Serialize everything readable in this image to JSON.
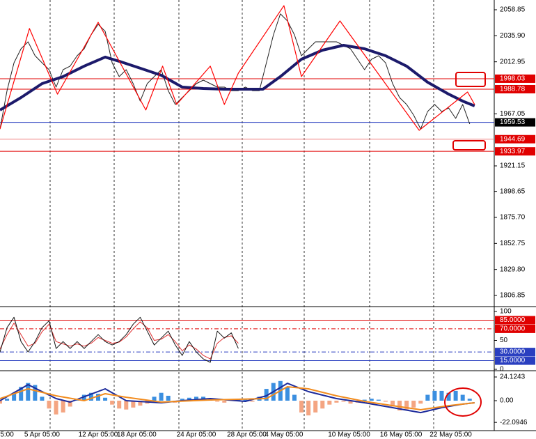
{
  "chart_data": [
    {
      "type": "line",
      "xlim": [
        0,
        70.5
      ],
      "ylim": [
        1798.25,
        2067.45
      ],
      "yticks": [
        2058.85,
        {
          "value": 2035.9,
          "label": "2035.90"
        },
        2012.95,
        1967.05,
        1921.15,
        1898.65,
        {
          "value": 1875.7,
          "label": "1875.70"
        },
        1852.75,
        {
          "value": 1829.8,
          "label": "1829.80"
        },
        1806.85
      ],
      "levels": [
        {
          "value": 1998.03,
          "color": "#e00000",
          "box": "#e00000"
        },
        {
          "value": 1988.78,
          "color": "#e00000",
          "box": "#e00000"
        },
        {
          "value": 1959.53,
          "color": "#2a3fc0",
          "box": "#000000"
        },
        {
          "value": 1944.69,
          "color": "#f08080",
          "box": "#e00000"
        },
        {
          "value": 1933.97,
          "color": "#e00000",
          "box": "#e00000"
        }
      ],
      "lines": [
        {
          "color": "#222222",
          "width": 1,
          "values": [
            1953.7,
            1987.5,
            2012.1,
            2024.4,
            2030.6,
            2018.3,
            2012.1,
            2006.0,
            1990.6,
            2006.0,
            2009.1,
            2018.3,
            2024.4,
            2036.7,
            2046.0,
            2039.8,
            2012.1,
            1999.9,
            2006.0,
            1993.7,
            1978.3,
            1993.7,
            1999.9,
            2006.0,
            1987.5,
            1975.3,
            1981.4,
            1987.5,
            1993.7,
            1996.8,
            1993.7,
            1990.6,
            1990.6,
            1987.5,
            1987.5,
            1990.6,
            1987.5,
            1987.5,
            2012.1,
            2036.7,
            2055.2,
            2049.0,
            2036.7,
            2018.3,
            2024.4,
            2030.6,
            2030.6,
            2030.6,
            2030.6,
            2027.5,
            2024.4,
            2015.2,
            2006.0,
            2015.2,
            2018.3,
            2012.1,
            1993.7,
            1981.4,
            1975.3,
            1966.0,
            1953.7,
            1969.1,
            1975.3,
            1969.1,
            1972.2,
            1963.0,
            1975.3,
            1958.1
          ]
        },
        {
          "color": "#1c1a6b",
          "width": 4,
          "x": [
            0,
            3,
            6,
            9,
            12,
            15,
            17,
            20,
            23,
            26,
            29,
            32,
            35,
            37.5,
            40,
            43,
            46,
            49,
            52,
            55,
            58,
            61,
            64,
            66,
            67.7
          ],
          "values": [
            1970.4,
            1981.4,
            1993.7,
            1999.9,
            2009.1,
            2017.1,
            2013.4,
            2007.3,
            2001.1,
            1990.6,
            1989.4,
            1988.8,
            1988.8,
            1988.8,
            1999.9,
            2015.2,
            2023.2,
            2027.5,
            2024.4,
            2018.3,
            2009.1,
            1994.9,
            1984.4,
            1978.3,
            1974.0
          ]
        },
        {
          "color": "#ff0000",
          "width": 1.2,
          "x": [
            0,
            4.2,
            8.2,
            14,
            20.8,
            23.2,
            25.2,
            30,
            32,
            34,
            40.5,
            43,
            48.5,
            59.8,
            66.7,
            67.7
          ],
          "values": [
            1953.7,
            2042.3,
            1984.4,
            2047.8,
            1970.4,
            2009.1,
            1975.3,
            2009.1,
            1975.3,
            2002.9,
            2062.5,
            1999.9,
            2049.0,
            1952.5,
            1986.3,
            1975.3
          ]
        }
      ]
    },
    {
      "type": "line",
      "xlim": [
        0,
        70.5
      ],
      "ylim": [
        0,
        100
      ],
      "yticks": [
        100,
        50,
        0
      ],
      "levels": [
        {
          "value": 85,
          "label": "85.0000",
          "color": "#e00000",
          "box": "#e00000",
          "style": "solid"
        },
        {
          "value": 70,
          "label": "70.0000",
          "color": "#e00000",
          "box": "#e00000",
          "style": "dashdot"
        },
        {
          "value": 30,
          "label": "30.0000",
          "color": "#2a3fc0",
          "box": "#2a3fc0",
          "style": "dashdot"
        },
        {
          "value": 15,
          "label": "15.0000",
          "color": "#2a3fc0",
          "box": "#2a3fc0",
          "style": "solid"
        }
      ],
      "lines": [
        {
          "color": "#e03030",
          "width": 1,
          "values": [
            35,
            60,
            80,
            60,
            40,
            45,
            65,
            78,
            48,
            44,
            40,
            44,
            40,
            45,
            55,
            50,
            45,
            47,
            56,
            70,
            82,
            72,
            50,
            52,
            60,
            48,
            32,
            42,
            35,
            24,
            18,
            45,
            55,
            58,
            45
          ]
        },
        {
          "color": "#111111",
          "width": 1,
          "values": [
            30,
            72,
            90,
            48,
            30,
            48,
            72,
            84,
            36,
            48,
            36,
            48,
            36,
            48,
            60,
            48,
            42,
            48,
            60,
            78,
            90,
            66,
            42,
            54,
            66,
            42,
            24,
            48,
            30,
            18,
            12,
            66,
            54,
            63,
            36
          ]
        }
      ]
    },
    {
      "type": "bar",
      "xlim": [
        0,
        70.5
      ],
      "ylim": [
        -30.5,
        29.8
      ],
      "yticks": [
        24.1243,
        {
          "value": 0,
          "label": "0.00"
        },
        -22.0946
      ],
      "bars": {
        "pos_color": "#3b8fe0",
        "neg_color": "#f4a582",
        "values": [
          -3,
          2,
          8,
          14,
          18,
          16,
          4,
          -8,
          -14,
          -12,
          -6,
          2,
          6,
          8,
          7,
          3,
          -4,
          -8,
          -9,
          -7,
          -5,
          -3,
          4,
          8,
          5,
          -2,
          2,
          3,
          4,
          4,
          2,
          -1,
          -2,
          1,
          2,
          1,
          -1,
          4,
          12,
          18,
          20,
          14,
          6,
          -12,
          -15,
          -12,
          -8,
          -4,
          -2,
          -1,
          -3,
          -2,
          1,
          2,
          1,
          -1,
          -6,
          -10,
          -9,
          -7,
          -3,
          6,
          10,
          10,
          8,
          10,
          6,
          2
        ]
      },
      "lines": [
        {
          "color": "#1c2a9b",
          "width": 2,
          "x": [
            0,
            4,
            8,
            10,
            15,
            18,
            23,
            26,
            30,
            35,
            38,
            41,
            44,
            48,
            52,
            56,
            60,
            63,
            66,
            67.7
          ],
          "values": [
            0,
            16.3,
            2.1,
            -1.4,
            12.1,
            0,
            -2.1,
            0,
            2.1,
            -0.7,
            5.0,
            17.7,
            9.2,
            2.1,
            -2.1,
            -7.1,
            -12.1,
            -7.1,
            -3.5,
            -2.1
          ]
        },
        {
          "color": "#f28c1e",
          "width": 2,
          "x": [
            0,
            4,
            8,
            12,
            15,
            18,
            23,
            30,
            38,
            41,
            44,
            48,
            52,
            56,
            60,
            64,
            67.7
          ],
          "values": [
            2.1,
            12.1,
            5.0,
            0,
            7.1,
            3.5,
            -1.4,
            0.7,
            2.1,
            14.2,
            12.1,
            5.0,
            -0.7,
            -5.0,
            -9.2,
            -5.0,
            -2.1
          ]
        }
      ],
      "xticks": [
        {
          "value": 1,
          "label": "5:00"
        },
        {
          "value": 6,
          "label": "5 Apr 05:00"
        },
        {
          "value": 14,
          "label": "12 Apr 05:00"
        },
        {
          "value": 19.5,
          "label": "18 Apr 05:00"
        },
        {
          "value": 28,
          "label": "24 Apr 05:00"
        },
        {
          "value": 35.2,
          "label": "28 Apr 05:00"
        },
        {
          "value": 40.5,
          "label": "4 May 05:00"
        },
        {
          "value": 49.8,
          "label": "10 May 05:00"
        },
        {
          "value": 57.2,
          "label": "16 May 05:00"
        },
        {
          "value": 64.3,
          "label": "22 May 05:00"
        }
      ]
    }
  ]
}
